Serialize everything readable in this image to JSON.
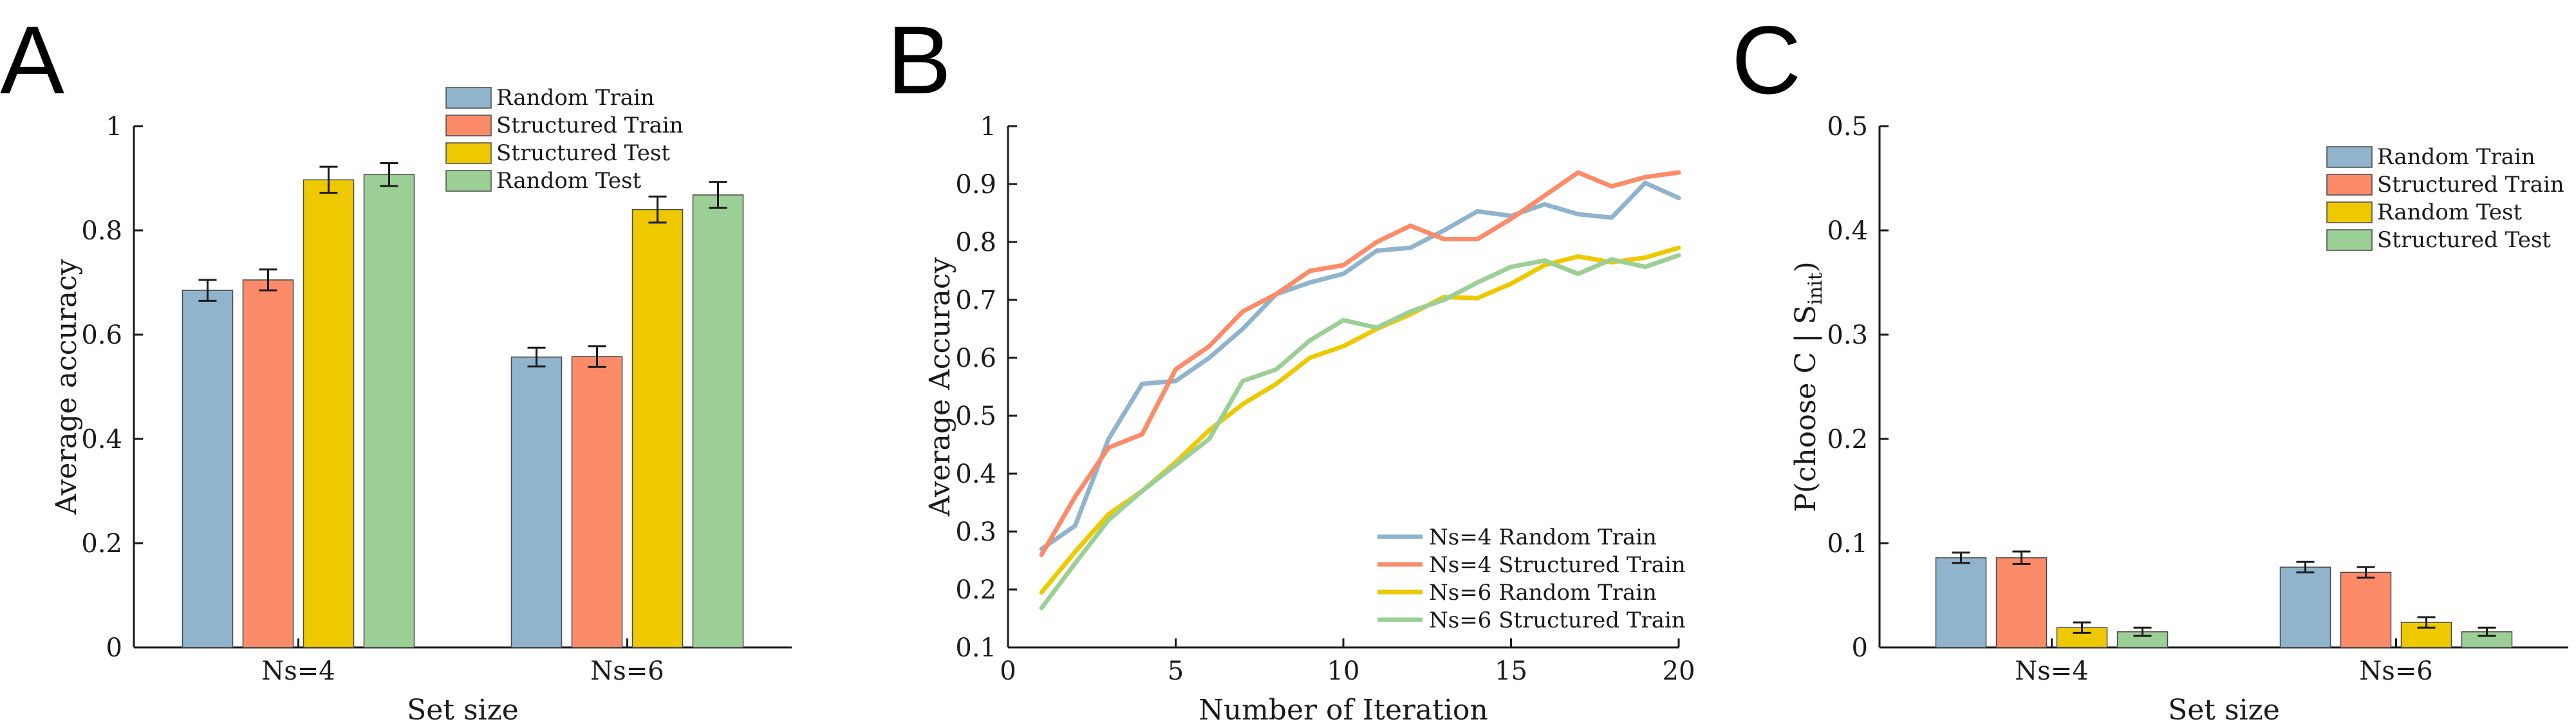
{
  "colors": {
    "random_train": "#8fb4cc",
    "structured_train": "#fc8b6a",
    "structured_test_yellow": "#eec900",
    "random_test_green": "#9ccf96",
    "line_blue": "#8fb4cc",
    "line_orange": "#fc8b6a",
    "line_yellow": "#eec900",
    "line_green": "#9ccf96",
    "axis": "#1a1a1a",
    "errorbar": "#1a1a1a"
  },
  "panels": {
    "A": "A",
    "B": "B",
    "C": "C"
  },
  "chart_data": [
    {
      "id": "A",
      "type": "bar",
      "title": "",
      "xlabel": "Set size",
      "ylabel": "Average accuracy",
      "ylim": [
        0,
        1
      ],
      "yticks": [
        0,
        0.2,
        0.4,
        0.6,
        0.8,
        1
      ],
      "ytick_labels": [
        "0",
        "0.2",
        "0.4",
        "0.6",
        "0.8",
        "1"
      ],
      "categories": [
        "Ns=4",
        "Ns=6"
      ],
      "legend_position": "top-center",
      "series": [
        {
          "name": "Random Train",
          "color_key": "random_train",
          "values": [
            0.685,
            0.557
          ],
          "errors": [
            0.02,
            0.018
          ]
        },
        {
          "name": "Structured Train",
          "color_key": "structured_train",
          "values": [
            0.705,
            0.558
          ],
          "errors": [
            0.02,
            0.02
          ]
        },
        {
          "name": "Structured Test",
          "color_key": "structured_test_yellow",
          "values": [
            0.897,
            0.84
          ],
          "errors": [
            0.025,
            0.025
          ]
        },
        {
          "name": "Random Test",
          "color_key": "random_test_green",
          "values": [
            0.907,
            0.868
          ],
          "errors": [
            0.022,
            0.025
          ]
        }
      ]
    },
    {
      "id": "B",
      "type": "line",
      "title": "",
      "xlabel": "Number of Iteration",
      "ylabel": "Average Accuracy",
      "xlim": [
        0,
        20
      ],
      "ylim": [
        0.1,
        1
      ],
      "xticks": [
        0,
        5,
        10,
        15,
        20
      ],
      "xtick_labels": [
        "0",
        "5",
        "10",
        "15",
        "20"
      ],
      "yticks": [
        0.1,
        0.2,
        0.3,
        0.4,
        0.5,
        0.6,
        0.7,
        0.8,
        0.9,
        1
      ],
      "ytick_labels": [
        "0.1",
        "0.2",
        "0.3",
        "0.4",
        "0.5",
        "0.6",
        "0.7",
        "0.8",
        "0.9",
        "1"
      ],
      "x": [
        1,
        2,
        3,
        4,
        5,
        6,
        7,
        8,
        9,
        10,
        11,
        12,
        13,
        14,
        15,
        16,
        17,
        18,
        19,
        20
      ],
      "legend_position": "bottom-right",
      "series": [
        {
          "name": "Ns=4 Random Train",
          "color_key": "line_blue",
          "values": [
            0.27,
            0.31,
            0.46,
            0.555,
            0.56,
            0.6,
            0.65,
            0.71,
            0.73,
            0.745,
            0.785,
            0.79,
            0.82,
            0.853,
            0.845,
            0.865,
            0.848,
            0.842,
            0.902,
            0.876
          ]
        },
        {
          "name": "Ns=4 Structured Train",
          "color_key": "line_orange",
          "values": [
            0.26,
            0.36,
            0.445,
            0.468,
            0.58,
            0.62,
            0.68,
            0.71,
            0.75,
            0.76,
            0.8,
            0.828,
            0.805,
            0.805,
            0.84,
            0.88,
            0.92,
            0.896,
            0.912,
            0.92
          ]
        },
        {
          "name": "Ns=6 Random Train",
          "color_key": "line_yellow",
          "values": [
            0.195,
            0.265,
            0.33,
            0.37,
            0.42,
            0.475,
            0.52,
            0.555,
            0.6,
            0.62,
            0.65,
            0.675,
            0.705,
            0.703,
            0.728,
            0.76,
            0.775,
            0.765,
            0.773,
            0.79
          ]
        },
        {
          "name": "Ns=6 Structured Train",
          "color_key": "line_green",
          "values": [
            0.168,
            0.245,
            0.32,
            0.37,
            0.415,
            0.46,
            0.56,
            0.58,
            0.63,
            0.665,
            0.652,
            0.68,
            0.7,
            0.73,
            0.757,
            0.768,
            0.745,
            0.77,
            0.757,
            0.777
          ]
        }
      ]
    },
    {
      "id": "C",
      "type": "bar",
      "title": "",
      "xlabel": "Set size",
      "ylabel": "P(choose C | S",
      "ylabel_sub": "init",
      "ylabel_close": ")",
      "ylim": [
        0,
        0.5
      ],
      "yticks": [
        0,
        0.1,
        0.2,
        0.3,
        0.4,
        0.5
      ],
      "ytick_labels": [
        "0",
        "0.1",
        "0.2",
        "0.3",
        "0.4",
        "0.5"
      ],
      "categories": [
        "Ns=4",
        "Ns=6"
      ],
      "legend_position": "top-right",
      "series": [
        {
          "name": "Random Train",
          "color_key": "random_train",
          "values": [
            0.086,
            0.077
          ],
          "errors": [
            0.005,
            0.005
          ]
        },
        {
          "name": "Structured Train",
          "color_key": "structured_train",
          "values": [
            0.086,
            0.072
          ],
          "errors": [
            0.006,
            0.005
          ]
        },
        {
          "name": "Random Test",
          "color_key": "structured_test_yellow",
          "values": [
            0.019,
            0.024
          ],
          "errors": [
            0.005,
            0.005
          ]
        },
        {
          "name": "Structured Test",
          "color_key": "random_test_green",
          "values": [
            0.015,
            0.015
          ],
          "errors": [
            0.004,
            0.004
          ]
        }
      ]
    }
  ]
}
